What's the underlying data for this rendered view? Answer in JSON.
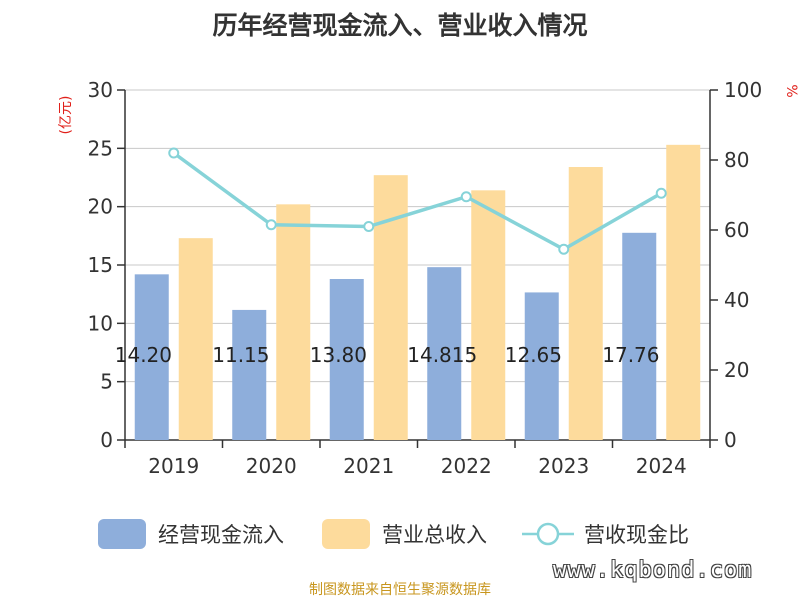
{
  "chart_data": {
    "type": "bar",
    "title": "历年经营现金流入、营业收入情况",
    "categories": [
      "2019",
      "2020",
      "2021",
      "2022",
      "2023",
      "2024"
    ],
    "series": [
      {
        "name": "经营现金流入",
        "type": "bar",
        "axis": "left",
        "color": "#8eaedb",
        "values": [
          14.2,
          11.15,
          13.8,
          14.815,
          12.65,
          17.76
        ],
        "labels": [
          "14.20",
          "11.15",
          "13.80",
          "14.815",
          "12.65",
          "17.76"
        ]
      },
      {
        "name": "营业总收入",
        "type": "bar",
        "axis": "left",
        "color": "#fddb9c",
        "values": [
          17.3,
          20.2,
          22.7,
          21.4,
          23.4,
          25.3
        ]
      },
      {
        "name": "营收现金比",
        "type": "line",
        "axis": "right",
        "color": "#86d3d8",
        "values": [
          82,
          61.5,
          61,
          69.5,
          54.5,
          70.5
        ]
      }
    ],
    "y_left": {
      "label": "(亿元)",
      "ylim": [
        0,
        30
      ],
      "ticks": [
        0,
        5,
        10,
        15,
        20,
        25,
        30
      ]
    },
    "y_right": {
      "label": "%",
      "ylim": [
        0,
        100
      ],
      "ticks": [
        0,
        20,
        40,
        60,
        80,
        100
      ]
    },
    "grid": true,
    "legend_position": "bottom"
  },
  "source": "制图数据来自恒生聚源数据库",
  "watermark": "www.kqbond.com"
}
